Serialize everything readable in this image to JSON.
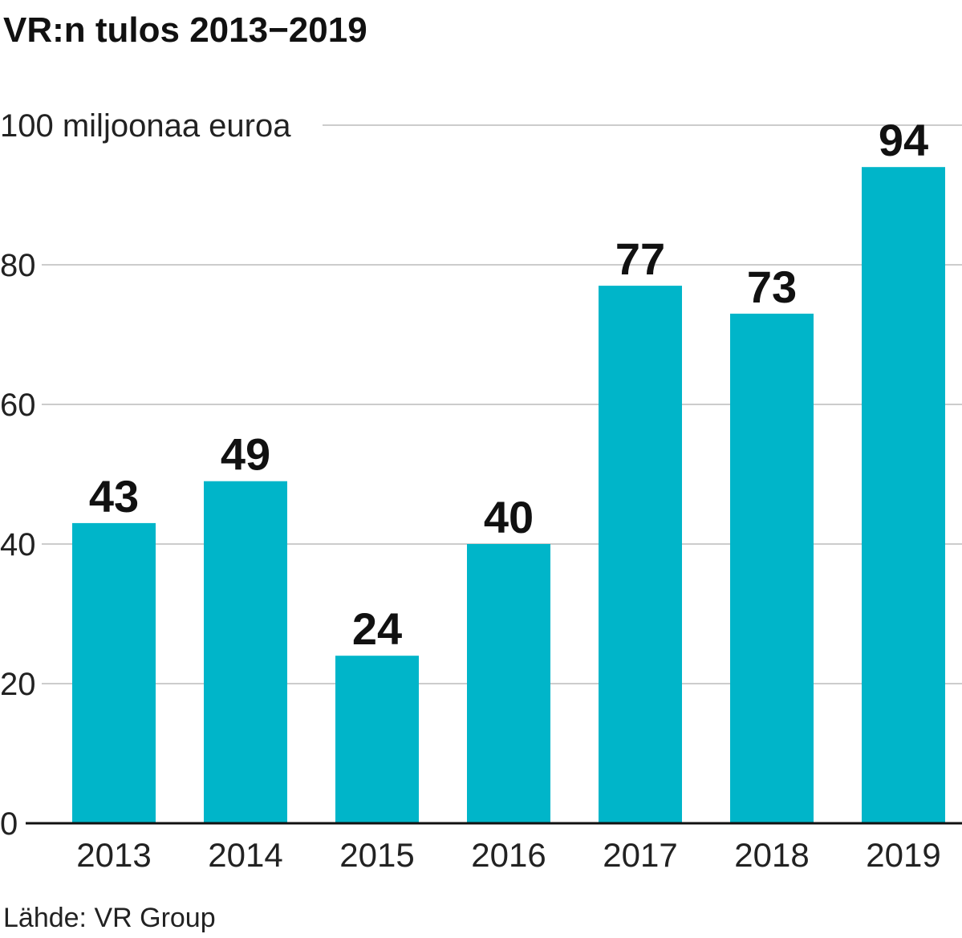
{
  "chart_data": {
    "type": "bar",
    "title": "VR:n tulos 2013−2019",
    "unit_label": "100 miljoonaa euroa",
    "categories": [
      "2013",
      "2014",
      "2015",
      "2016",
      "2017",
      "2018",
      "2019"
    ],
    "values": [
      43,
      49,
      24,
      40,
      77,
      73,
      94
    ],
    "data_labels": [
      "43",
      "49",
      "24",
      "40",
      "77",
      "73",
      "94"
    ],
    "y_ticks": [
      "0",
      "20",
      "40",
      "60",
      "80"
    ],
    "y_tick_values": [
      0,
      20,
      40,
      60,
      80
    ],
    "ylim": [
      0,
      100
    ],
    "grid": true,
    "colors": {
      "bar": "#00b5c9",
      "grid": "#cccccc",
      "axis": "#111111"
    },
    "source": "Lähde: VR Group"
  }
}
